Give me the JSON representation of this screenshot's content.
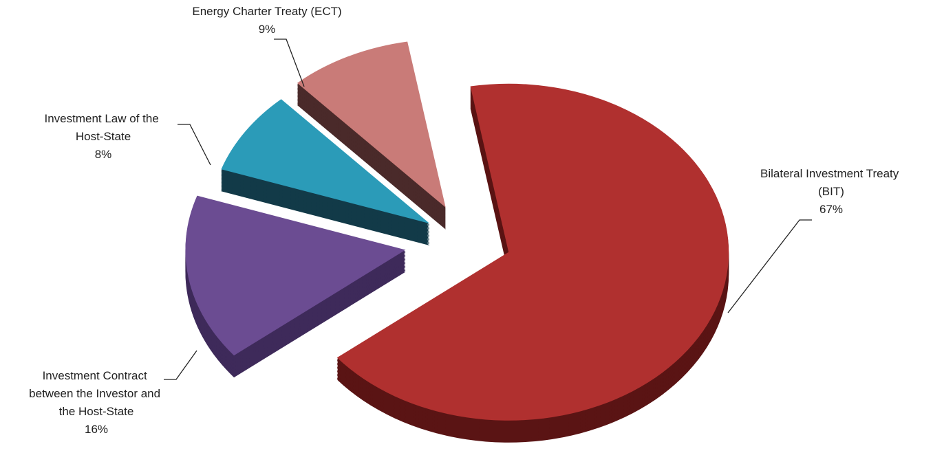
{
  "chart_data": {
    "type": "pie",
    "categories": [
      "Bilateral Investment Treaty (BIT)",
      "Investment Contract between the Investor and the Host-State",
      "Investment Law of the Host-State",
      "Energy Charter Treaty (ECT)"
    ],
    "values": [
      67,
      16,
      8,
      9
    ],
    "value_labels": [
      "67%",
      "16%",
      "8%",
      "9%"
    ],
    "colors": [
      "#b0302f",
      "#6b4c92",
      "#2b9bb8",
      "#c97b78"
    ],
    "side_colors": [
      "#5a1414",
      "#3e2a5a",
      "#123a48",
      "#4a2a2a"
    ]
  }
}
